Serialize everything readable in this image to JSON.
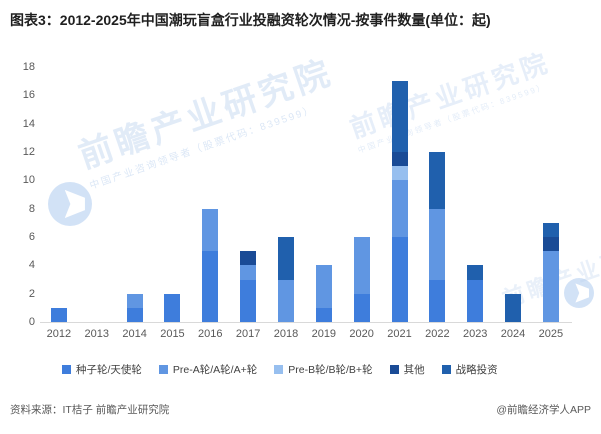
{
  "title": "图表3：2012-2025年中国潮玩盲盒行业投融资轮次情况-按事件数量(单位：起)",
  "footer": {
    "source": "资料来源：IT桔子 前瞻产业研究院",
    "credit": "@前瞻经济学人APP"
  },
  "watermark": {
    "brand": "前瞻产业研究院",
    "sub": "中国产业咨询领导者（股票代码：839599）"
  },
  "chart_data": {
    "type": "bar",
    "stacked": true,
    "title": "图表3：2012-2025年中国潮玩盲盒行业投融资轮次情况-按事件数量(单位：起)",
    "xlabel": "",
    "ylabel": "",
    "ylim": [
      0,
      18
    ],
    "ytick_step": 2,
    "grid": false,
    "legend_position": "bottom",
    "categories": [
      "2012",
      "2013",
      "2014",
      "2015",
      "2016",
      "2017",
      "2018",
      "2019",
      "2020",
      "2021",
      "2022",
      "2023",
      "2024",
      "2025"
    ],
    "series": [
      {
        "name": "种子轮/天使轮",
        "color": "#3E7DDC",
        "values": [
          1,
          0,
          1,
          2,
          5,
          3,
          0,
          1,
          2,
          6,
          3,
          3,
          0,
          0
        ]
      },
      {
        "name": "Pre-A轮/A轮/A+轮",
        "color": "#6096E2",
        "values": [
          0,
          0,
          1,
          0,
          3,
          1,
          3,
          3,
          4,
          4,
          5,
          0,
          0,
          5
        ]
      },
      {
        "name": "Pre-B轮/B轮/B+轮",
        "color": "#97BFEF",
        "values": [
          0,
          0,
          0,
          0,
          0,
          0,
          0,
          0,
          0,
          1,
          0,
          0,
          0,
          0
        ]
      },
      {
        "name": "其他",
        "color": "#1A4B96",
        "values": [
          0,
          0,
          0,
          0,
          0,
          1,
          0,
          0,
          0,
          1,
          0,
          0,
          0,
          1
        ]
      },
      {
        "name": "战略投资",
        "color": "#2060AD",
        "values": [
          0,
          0,
          0,
          0,
          0,
          0,
          3,
          0,
          0,
          5,
          4,
          1,
          2,
          1
        ]
      }
    ],
    "totals": [
      1,
      0,
      2,
      2,
      8,
      5,
      6,
      4,
      6,
      17,
      12,
      4,
      2,
      7
    ]
  }
}
